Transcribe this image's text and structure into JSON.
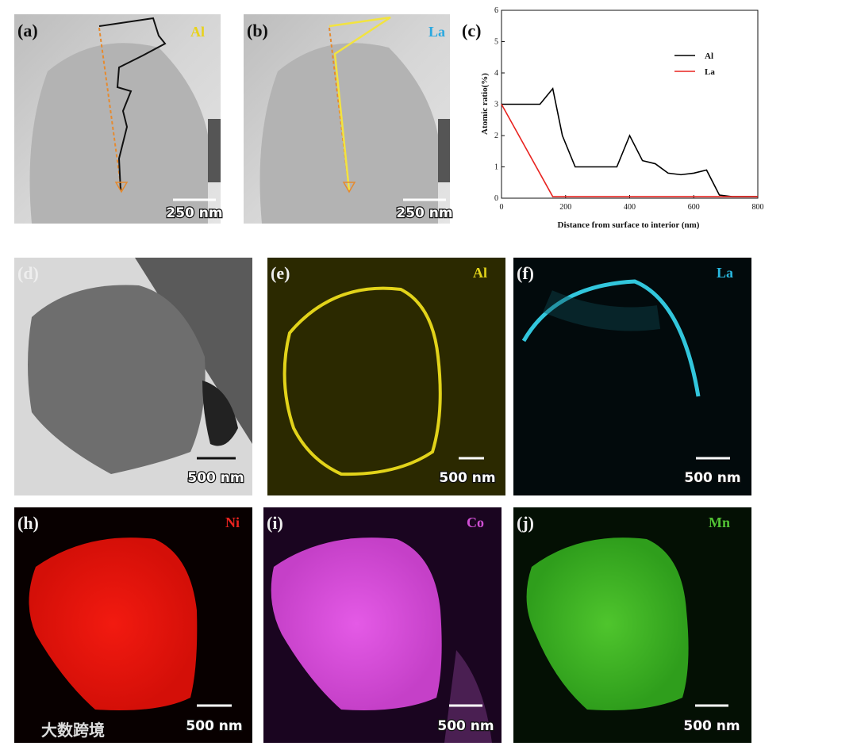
{
  "panels": [
    {
      "label": "(a)",
      "element": "Al",
      "scale": "250 nm"
    },
    {
      "label": "(b)",
      "element": "La",
      "scale": "250 nm"
    },
    {
      "label": "(c)"
    },
    {
      "label": "(d)",
      "scale": "500 nm"
    },
    {
      "label": "(e)",
      "element": "Al",
      "scale": "500 nm"
    },
    {
      "label": "(f)",
      "element": "La",
      "scale": "500 nm"
    },
    {
      "label": "(h)",
      "element": "Ni",
      "scale": "500 nm"
    },
    {
      "label": "(i)",
      "element": "Co",
      "scale": "500 nm"
    },
    {
      "label": "(j)",
      "element": "Mn",
      "scale": "500 nm"
    }
  ],
  "watermark": "大数跨境",
  "chart_data": {
    "type": "line",
    "xlabel": "Distance from surface to interior (nm)",
    "ylabel": "Atomic ratio(%)",
    "xlim": [
      0,
      800
    ],
    "xticks": [
      0,
      200,
      400,
      600,
      800
    ],
    "ylim": [
      0,
      6
    ],
    "yticks": [
      0,
      1,
      2,
      3,
      4,
      5,
      6
    ],
    "legend": "upper right",
    "series": [
      {
        "name": "Al",
        "color": "#000000",
        "x": [
          0,
          120,
          160,
          190,
          230,
          300,
          360,
          400,
          440,
          480,
          520,
          560,
          600,
          640,
          680,
          720,
          800
        ],
        "values": [
          3,
          3,
          3.5,
          2,
          1,
          1,
          1,
          2,
          1.2,
          1.1,
          0.8,
          0.75,
          0.8,
          0.9,
          0.1,
          0.05,
          0.05
        ]
      },
      {
        "name": "La",
        "color": "#e8231f",
        "x": [
          0,
          160,
          800
        ],
        "values": [
          3,
          0.05,
          0.05
        ]
      }
    ]
  }
}
